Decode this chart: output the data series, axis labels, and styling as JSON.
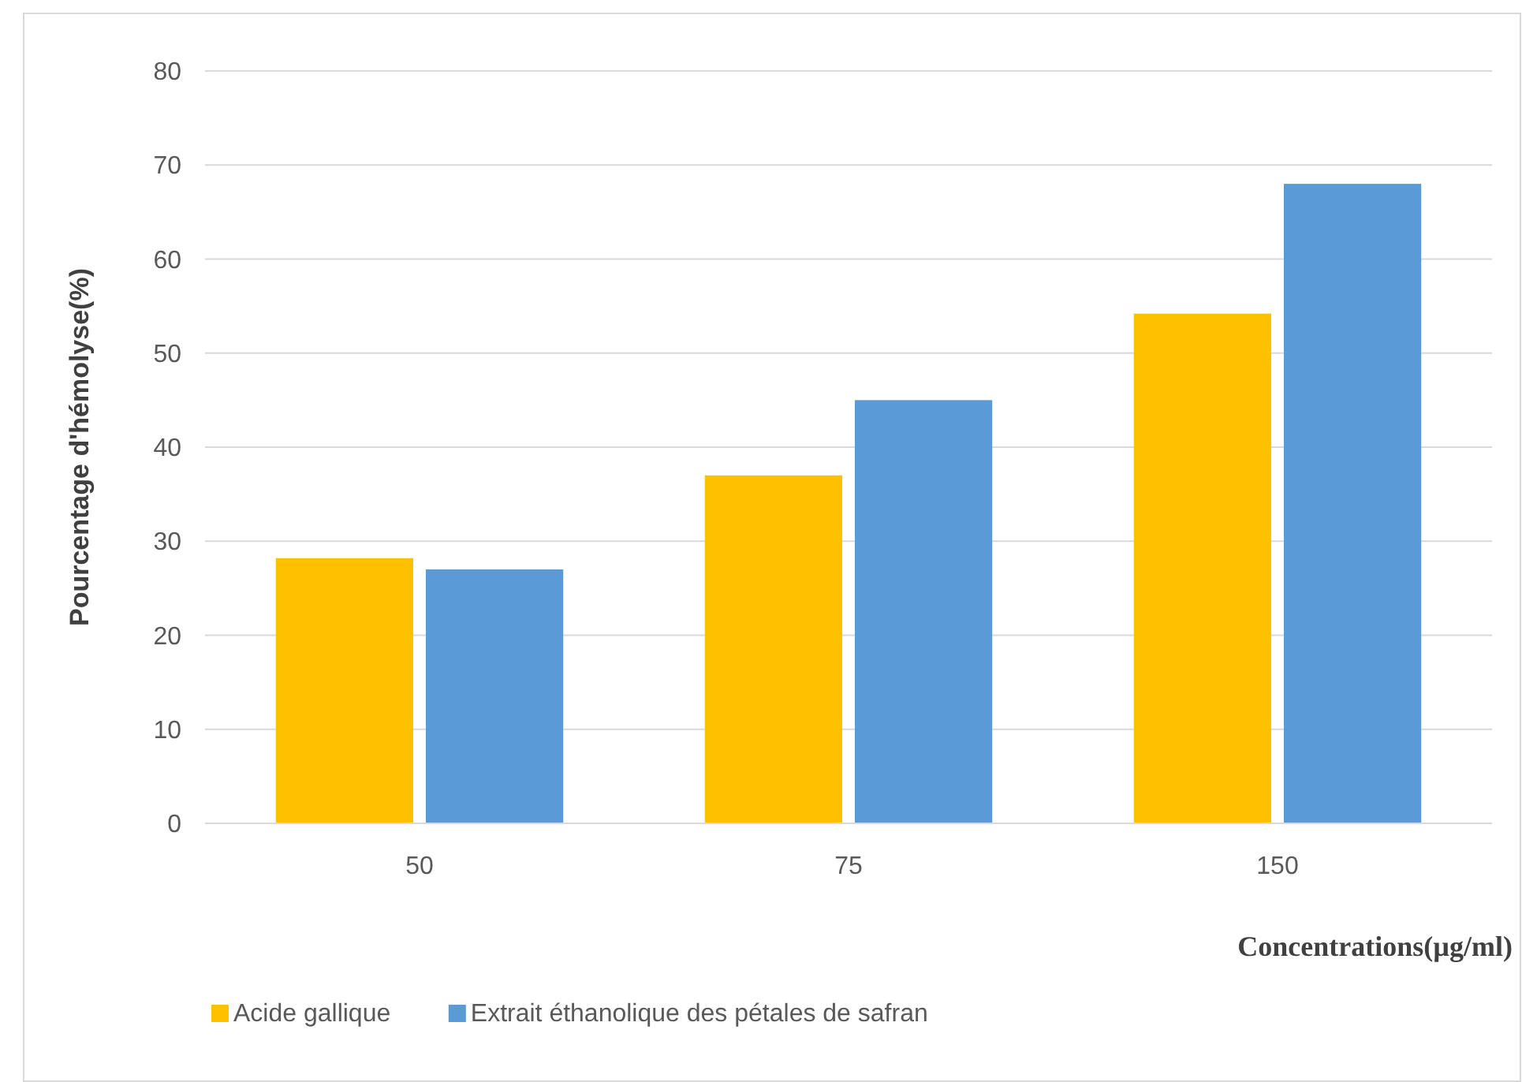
{
  "chart_data": {
    "type": "bar",
    "xlabel": "Concentrations(µg/ml)",
    "ylabel": "Pourcentage d'hémolyse(%)",
    "categories": [
      "50",
      "75",
      "150"
    ],
    "series": [
      {
        "name": "Acide gallique",
        "color": "#ffc000",
        "values": [
          28.2,
          37,
          54.2
        ]
      },
      {
        "name": "Extrait éthanolique des pétales de safran",
        "color": "#5b9bd5",
        "values": [
          27,
          45,
          68
        ]
      }
    ],
    "ylim": [
      0,
      80
    ],
    "yticks": [
      0,
      10,
      20,
      30,
      40,
      50,
      60,
      70,
      80
    ],
    "grid": "y",
    "legend": "bottom left"
  }
}
